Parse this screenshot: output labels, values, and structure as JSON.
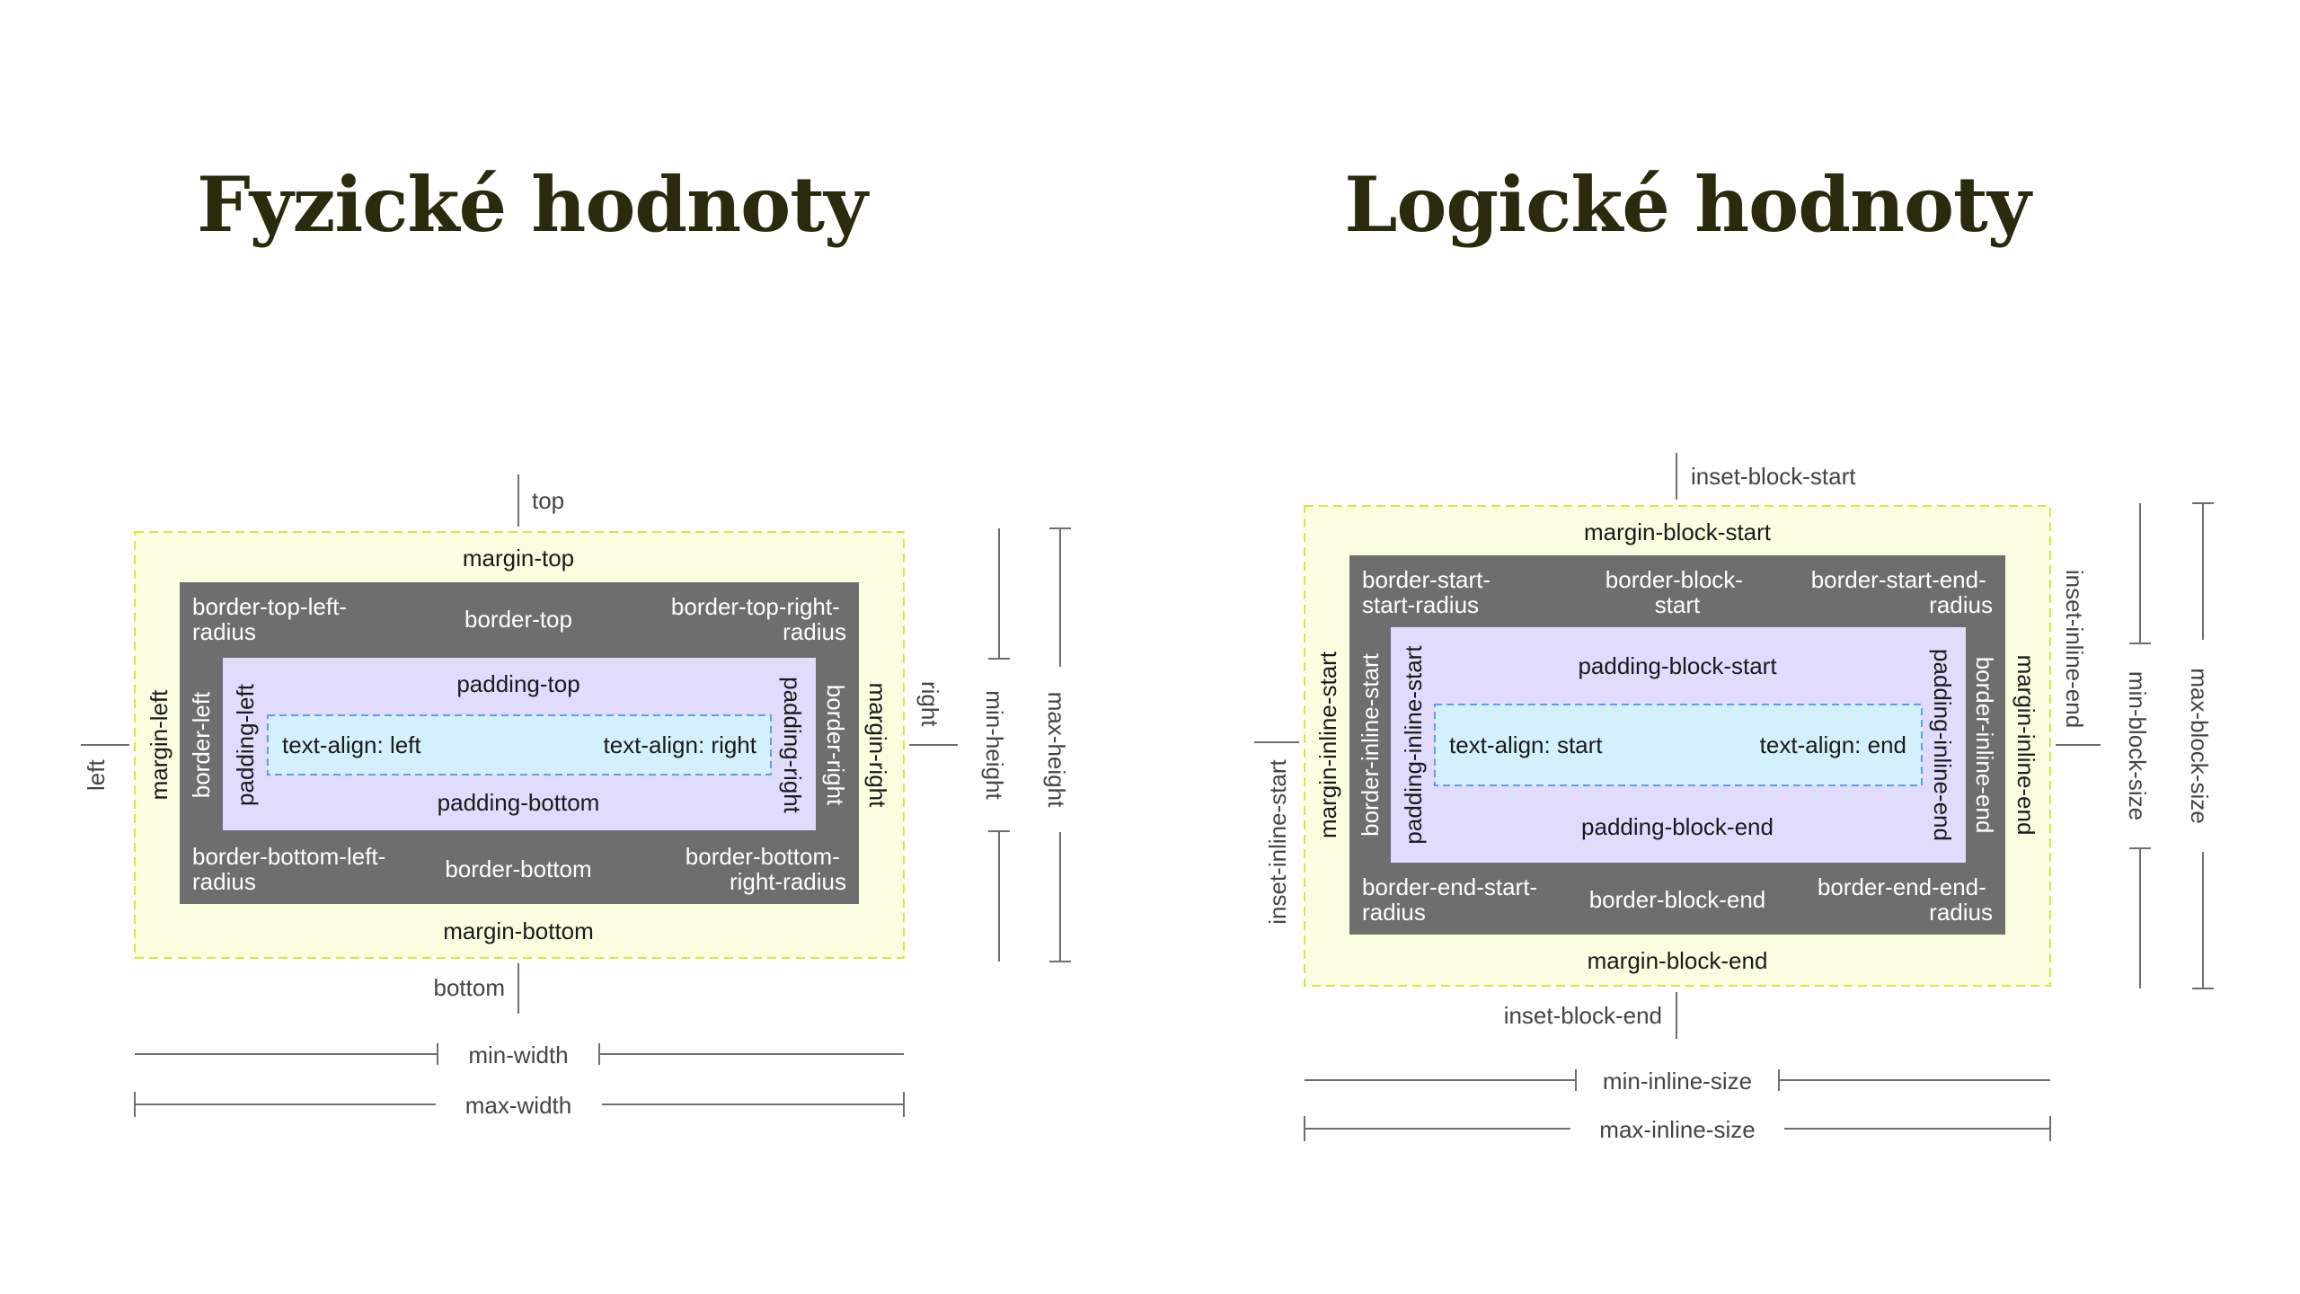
{
  "titles": {
    "physical": "Fyzické hodnoty",
    "logical": "Logické hodnoty"
  },
  "physical": {
    "top": "top",
    "bottom": "bottom",
    "left": "left",
    "right": "right",
    "margin_top": "margin-top",
    "margin_bottom": "margin-bottom",
    "margin_left": "margin-left",
    "margin_right": "margin-right",
    "border_top_left_radius": [
      "border-top-left-",
      "radius"
    ],
    "border_top": "border-top",
    "border_top_right_radius": [
      "border-top-right-",
      "radius"
    ],
    "border_left": "border-left",
    "border_right": "border-right",
    "border_bottom_left_radius": [
      "border-bottom-left-",
      "radius"
    ],
    "border_bottom": "border-bottom",
    "border_bottom_right_radius": [
      "border-bottom-",
      "right-radius"
    ],
    "padding_top": "padding-top",
    "padding_bottom": "padding-bottom",
    "padding_left": "padding-left",
    "padding_right": "padding-right",
    "text_align_left": "text-align: left",
    "text_align_right": "text-align: right",
    "min_height": "min-height",
    "max_height": "max-height",
    "min_width": "min-width",
    "max_width": "max-width"
  },
  "logical": {
    "inset_block_start": "inset-block-start",
    "inset_block_end": "inset-block-end",
    "inset_inline_start": "inset-inline-start",
    "inset_inline_end": "inset-inline-end",
    "margin_block_start": "margin-block-start",
    "margin_block_end": "margin-block-end",
    "margin_inline_start": "margin-inline-start",
    "margin_inline_end": "margin-inline-end",
    "border_start_start_radius": [
      "border-start-",
      "start-radius"
    ],
    "border_block_start": [
      "border-block-",
      "start"
    ],
    "border_start_end_radius": [
      "border-start-end-",
      "radius"
    ],
    "border_inline_start": "border-inline-start",
    "border_inline_end": "border-inline-end",
    "border_end_start_radius": [
      "border-end-start-",
      "radius"
    ],
    "border_block_end": "border-block-end",
    "border_end_end_radius": [
      "border-end-end-",
      "radius"
    ],
    "padding_block_start": "padding-block-start",
    "padding_block_end": "padding-block-end",
    "padding_inline_start": "padding-inline-start",
    "padding_inline_end": "padding-inline-end",
    "text_align_start": "text-align: start",
    "text_align_end": "text-align: end",
    "min_block_size": "min-block-size",
    "max_block_size": "max-block-size",
    "min_inline_size": "min-inline-size",
    "max_inline_size": "max-inline-size"
  },
  "colors": {
    "margin_fill": "#fafde0",
    "margin_dash": "#d8e640",
    "border_fill": "#6e6e6e",
    "padding_fill": "#e1dcfd",
    "content_fill": "#d4f1fb",
    "content_dash": "#5e9eee",
    "title_color": "#2a2a0c"
  }
}
